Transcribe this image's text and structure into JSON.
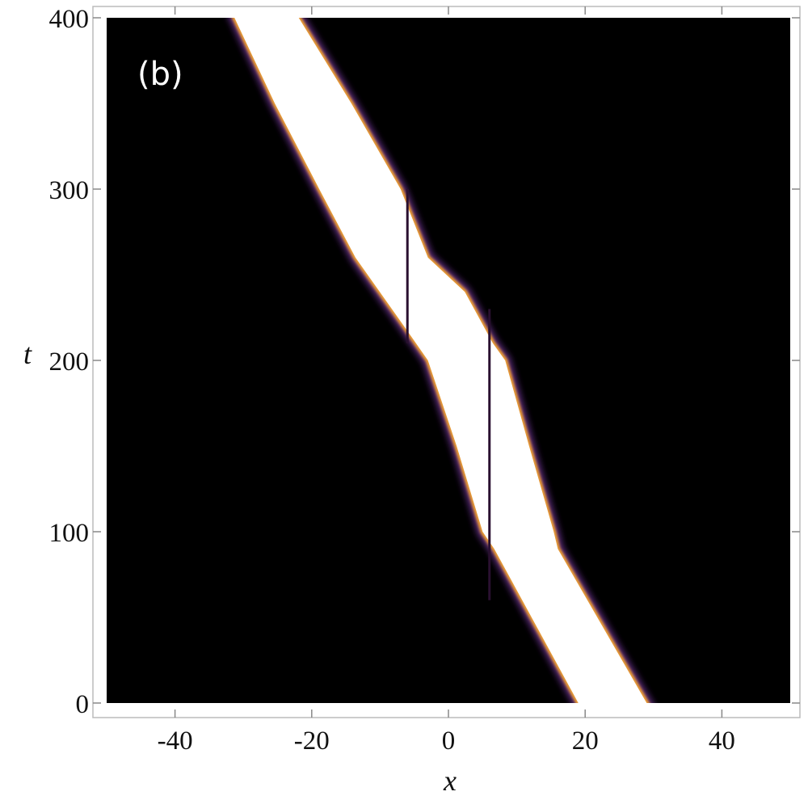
{
  "chart_data": {
    "type": "band",
    "annotation": "(b)",
    "x_label": "x",
    "y_label": "t",
    "xlim": [
      -50,
      50
    ],
    "ylim": [
      0,
      400
    ],
    "xticks": [
      -40,
      -20,
      0,
      20,
      40
    ],
    "yticks": [
      0,
      100,
      200,
      300,
      400
    ],
    "background": "#000000",
    "fill": "#ffffff",
    "edge_color": "#f0a030",
    "glow_color": "#5a2a7a",
    "series": [
      {
        "t": [
          0,
          90,
          100,
          150,
          200,
          220,
          260,
          300,
          350,
          400
        ],
        "x": [
          19,
          6.7,
          5,
          1.2,
          -3,
          -6.5,
          -13.6,
          -18.9,
          -25.4,
          -31.3
        ]
      },
      {
        "t": [
          0,
          90,
          100,
          150,
          200,
          210,
          240,
          260,
          300,
          350,
          400
        ],
        "x": [
          29,
          16,
          15.4,
          11.8,
          8.3,
          6.5,
          2.4,
          -3,
          -7,
          -14.2,
          -21.9
        ]
      }
    ],
    "dark_lines": [
      {
        "x": -6,
        "t": [
          210,
          300
        ]
      },
      {
        "x": 6,
        "t": [
          60,
          230
        ]
      }
    ]
  }
}
